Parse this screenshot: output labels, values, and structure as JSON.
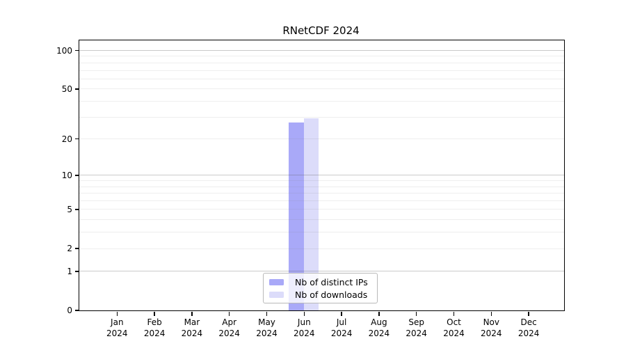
{
  "figure": {
    "background": "#ffffff"
  },
  "chart_data": {
    "type": "bar",
    "title": "RNetCDF 2024",
    "xlabel": "",
    "ylabel": "",
    "categories": [
      "Jan",
      "Feb",
      "Mar",
      "Apr",
      "May",
      "Jun",
      "Jul",
      "Aug",
      "Sep",
      "Oct",
      "Nov",
      "Dec"
    ],
    "category_year": "2024",
    "series": [
      {
        "name": "Nb of distinct IPs",
        "color": "#a9a9f8",
        "values": [
          0,
          0,
          0,
          0,
          0,
          27,
          0,
          0,
          0,
          0,
          0,
          0
        ]
      },
      {
        "name": "Nb of downloads",
        "color": "#dcdcfa",
        "values": [
          0,
          0,
          0,
          0,
          0,
          29,
          0,
          0,
          0,
          0,
          0,
          0
        ]
      }
    ],
    "yscale": "log1p",
    "ylim": [
      0,
      120
    ],
    "y_tick_labels": [
      0,
      1,
      2,
      5,
      10,
      20,
      50,
      100
    ],
    "y_major_gridlines": [
      1,
      10,
      100
    ],
    "y_minor_gridlines": [
      2,
      3,
      4,
      5,
      6,
      7,
      8,
      9,
      20,
      30,
      40,
      50,
      60,
      70,
      80,
      90
    ],
    "grid": "horizontal",
    "legend_position": "lower center",
    "spine_color": "#000000",
    "text_color": "#000000"
  }
}
